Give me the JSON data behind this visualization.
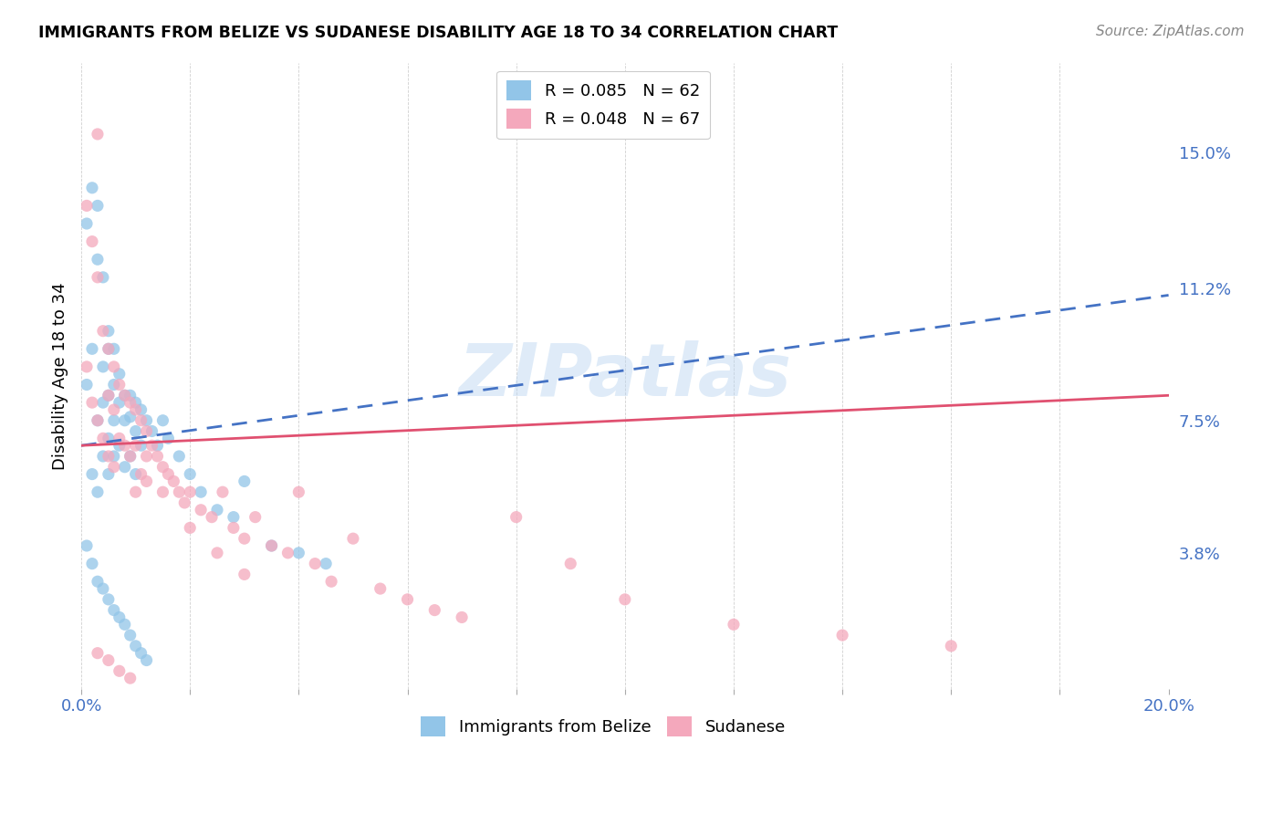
{
  "title": "IMMIGRANTS FROM BELIZE VS SUDANESE DISABILITY AGE 18 TO 34 CORRELATION CHART",
  "source": "Source: ZipAtlas.com",
  "ylabel": "Disability Age 18 to 34",
  "xlim": [
    0.0,
    0.2
  ],
  "ylim": [
    0.0,
    0.175
  ],
  "ytick_positions": [
    0.038,
    0.075,
    0.112,
    0.15
  ],
  "ytick_labels": [
    "3.8%",
    "7.5%",
    "11.2%",
    "15.0%"
  ],
  "belize_R": 0.085,
  "belize_N": 62,
  "sudanese_R": 0.048,
  "sudanese_N": 67,
  "belize_color": "#92C5E8",
  "sudanese_color": "#F4A8BC",
  "belize_line_color": "#4472C4",
  "sudanese_line_color": "#E05070",
  "watermark": "ZIPatlas",
  "belize_x": [
    0.001,
    0.001,
    0.002,
    0.002,
    0.002,
    0.003,
    0.003,
    0.003,
    0.003,
    0.004,
    0.004,
    0.004,
    0.004,
    0.005,
    0.005,
    0.005,
    0.005,
    0.005,
    0.006,
    0.006,
    0.006,
    0.006,
    0.007,
    0.007,
    0.007,
    0.008,
    0.008,
    0.008,
    0.009,
    0.009,
    0.009,
    0.01,
    0.01,
    0.01,
    0.011,
    0.011,
    0.012,
    0.013,
    0.014,
    0.015,
    0.016,
    0.018,
    0.02,
    0.022,
    0.025,
    0.028,
    0.03,
    0.035,
    0.04,
    0.045,
    0.001,
    0.002,
    0.003,
    0.004,
    0.005,
    0.006,
    0.007,
    0.008,
    0.009,
    0.01,
    0.011,
    0.012
  ],
  "belize_y": [
    0.085,
    0.13,
    0.14,
    0.095,
    0.06,
    0.135,
    0.12,
    0.075,
    0.055,
    0.115,
    0.09,
    0.08,
    0.065,
    0.1,
    0.095,
    0.082,
    0.07,
    0.06,
    0.095,
    0.085,
    0.075,
    0.065,
    0.088,
    0.08,
    0.068,
    0.082,
    0.075,
    0.062,
    0.082,
    0.076,
    0.065,
    0.08,
    0.072,
    0.06,
    0.078,
    0.068,
    0.075,
    0.072,
    0.068,
    0.075,
    0.07,
    0.065,
    0.06,
    0.055,
    0.05,
    0.048,
    0.058,
    0.04,
    0.038,
    0.035,
    0.04,
    0.035,
    0.03,
    0.028,
    0.025,
    0.022,
    0.02,
    0.018,
    0.015,
    0.012,
    0.01,
    0.008
  ],
  "sudanese_x": [
    0.001,
    0.001,
    0.002,
    0.002,
    0.003,
    0.003,
    0.003,
    0.004,
    0.004,
    0.005,
    0.005,
    0.005,
    0.006,
    0.006,
    0.006,
    0.007,
    0.007,
    0.008,
    0.008,
    0.009,
    0.009,
    0.01,
    0.01,
    0.01,
    0.011,
    0.011,
    0.012,
    0.012,
    0.013,
    0.014,
    0.015,
    0.016,
    0.017,
    0.018,
    0.019,
    0.02,
    0.022,
    0.024,
    0.026,
    0.028,
    0.03,
    0.032,
    0.035,
    0.038,
    0.04,
    0.043,
    0.046,
    0.05,
    0.055,
    0.06,
    0.065,
    0.07,
    0.08,
    0.09,
    0.1,
    0.12,
    0.14,
    0.16,
    0.003,
    0.005,
    0.007,
    0.009,
    0.012,
    0.015,
    0.02,
    0.025,
    0.03
  ],
  "sudanese_y": [
    0.135,
    0.09,
    0.125,
    0.08,
    0.155,
    0.115,
    0.075,
    0.1,
    0.07,
    0.095,
    0.082,
    0.065,
    0.09,
    0.078,
    0.062,
    0.085,
    0.07,
    0.082,
    0.068,
    0.08,
    0.065,
    0.078,
    0.068,
    0.055,
    0.075,
    0.06,
    0.072,
    0.058,
    0.068,
    0.065,
    0.062,
    0.06,
    0.058,
    0.055,
    0.052,
    0.055,
    0.05,
    0.048,
    0.055,
    0.045,
    0.042,
    0.048,
    0.04,
    0.038,
    0.055,
    0.035,
    0.03,
    0.042,
    0.028,
    0.025,
    0.022,
    0.02,
    0.048,
    0.035,
    0.025,
    0.018,
    0.015,
    0.012,
    0.01,
    0.008,
    0.005,
    0.003,
    0.065,
    0.055,
    0.045,
    0.038,
    0.032
  ],
  "belize_line_x": [
    0.0,
    0.2
  ],
  "belize_line_y_start": 0.068,
  "belize_line_y_end": 0.11,
  "sudanese_line_x": [
    0.0,
    0.2
  ],
  "sudanese_line_y_start": 0.068,
  "sudanese_line_y_end": 0.082
}
